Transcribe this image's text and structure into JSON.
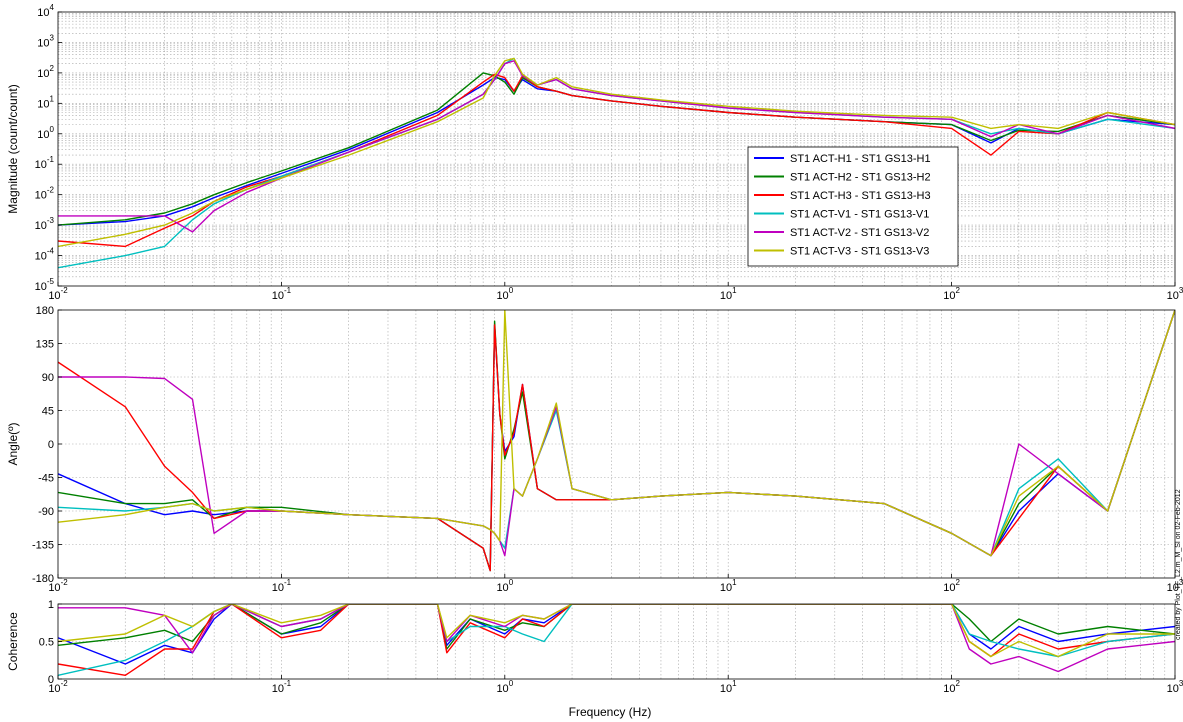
{
  "figure": {
    "credit": "created by Plot_TF_L2.m_M_SI on 02-Feb-2012",
    "xlabel": "Frequency (Hz)"
  },
  "chart_data": [
    {
      "type": "line",
      "xscale": "log",
      "yscale": "log",
      "xlim": [
        0.01,
        1000
      ],
      "ylim": [
        1e-05,
        10000
      ],
      "ylabel": "Magnitude (count/count)",
      "x_ticks": [
        0.01,
        0.1,
        1,
        10,
        100,
        1000
      ],
      "y_ticks": [
        1e-05,
        0.0001,
        0.001,
        0.01,
        0.1,
        1,
        10,
        100,
        1000,
        10000
      ],
      "grid": true,
      "legend_position": "right",
      "x": [
        0.01,
        0.02,
        0.03,
        0.04,
        0.05,
        0.07,
        0.1,
        0.2,
        0.5,
        0.8,
        0.9,
        1.0,
        1.1,
        1.2,
        1.4,
        1.7,
        2,
        3,
        5,
        10,
        20,
        50,
        100,
        150,
        200,
        300,
        500,
        1000
      ],
      "series": [
        {
          "name": "ST1 ACT-H1 - ST1 GS13-H1",
          "color": "#0000ff",
          "values": [
            0.001,
            0.0013,
            0.002,
            0.004,
            0.008,
            0.02,
            0.05,
            0.3,
            5,
            40,
            70,
            60,
            25,
            60,
            30,
            25,
            18,
            12,
            8,
            5,
            3.5,
            2.5,
            2,
            0.5,
            1.5,
            1,
            3,
            2
          ]
        },
        {
          "name": "ST1 ACT-H2 - ST1 GS13-H2",
          "color": "#008000",
          "values": [
            0.001,
            0.0015,
            0.0025,
            0.005,
            0.01,
            0.025,
            0.06,
            0.35,
            6,
            100,
            80,
            50,
            20,
            70,
            35,
            25,
            18,
            12,
            8,
            5,
            3.5,
            2.5,
            2,
            0.6,
            1.3,
            1.2,
            4,
            2
          ]
        },
        {
          "name": "ST1 ACT-H3 - ST1 GS13-H3",
          "color": "#ff0000",
          "values": [
            0.0003,
            0.0002,
            0.0008,
            0.002,
            0.006,
            0.018,
            0.04,
            0.25,
            4,
            50,
            90,
            70,
            25,
            80,
            35,
            25,
            18,
            12,
            8,
            5,
            3.5,
            2.5,
            1.5,
            0.2,
            1.2,
            1,
            5,
            2
          ]
        },
        {
          "name": "ST1 ACT-V1 - ST1 GS13-V1",
          "color": "#00bfbf",
          "values": [
            4e-05,
            0.0001,
            0.0002,
            0.0015,
            0.005,
            0.015,
            0.04,
            0.25,
            3,
            20,
            60,
            200,
            300,
            80,
            40,
            60,
            30,
            18,
            12,
            7,
            5,
            3.5,
            3,
            1,
            1.5,
            1,
            3,
            1.5
          ]
        },
        {
          "name": "ST1 ACT-V2 - ST1 GS13-V2",
          "color": "#bf00bf",
          "values": [
            0.002,
            0.002,
            0.002,
            0.0006,
            0.003,
            0.012,
            0.035,
            0.25,
            3,
            20,
            60,
            200,
            250,
            80,
            40,
            60,
            30,
            18,
            12,
            7,
            5,
            3.5,
            3,
            0.8,
            2,
            1,
            4,
            1.5
          ]
        },
        {
          "name": "ST1 ACT-V3 - ST1 GS13-V3",
          "color": "#bfbf00",
          "values": [
            0.0002,
            0.0005,
            0.001,
            0.0025,
            0.006,
            0.015,
            0.035,
            0.2,
            2.5,
            15,
            80,
            250,
            300,
            90,
            40,
            70,
            35,
            20,
            13,
            8,
            5.5,
            4,
            3.5,
            1.5,
            2,
            1.5,
            5,
            2
          ]
        }
      ]
    },
    {
      "type": "line",
      "xscale": "log",
      "xlim": [
        0.01,
        1000
      ],
      "ylim": [
        -180,
        180
      ],
      "ylabel": "Angle(º)",
      "x_ticks": [
        0.01,
        0.1,
        1,
        10,
        100,
        1000
      ],
      "y_ticks": [
        -180,
        -135,
        -90,
        -45,
        0,
        45,
        90,
        135,
        180
      ],
      "grid": true,
      "x": [
        0.01,
        0.02,
        0.03,
        0.04,
        0.05,
        0.07,
        0.1,
        0.2,
        0.5,
        0.8,
        0.86,
        0.9,
        0.95,
        1.0,
        1.1,
        1.2,
        1.4,
        1.7,
        2,
        3,
        5,
        10,
        20,
        50,
        100,
        150,
        200,
        300,
        500,
        1000
      ],
      "series": [
        {
          "name": "ST1 ACT-H1 - ST1 GS13-H1",
          "color": "#0000ff",
          "values": [
            -40,
            -80,
            -95,
            -90,
            -95,
            -90,
            -90,
            -95,
            -100,
            -140,
            -170,
            160,
            40,
            -10,
            10,
            80,
            -60,
            -75,
            -75,
            -75,
            -70,
            -65,
            -70,
            -80,
            -120,
            -150,
            -90,
            -40,
            -90,
            180
          ]
        },
        {
          "name": "ST1 ACT-H2 - ST1 GS13-H2",
          "color": "#008000",
          "values": [
            -65,
            -80,
            -80,
            -75,
            -100,
            -85,
            -85,
            -95,
            -100,
            -140,
            -170,
            165,
            40,
            -20,
            20,
            70,
            -60,
            -75,
            -75,
            -75,
            -70,
            -65,
            -70,
            -80,
            -120,
            -150,
            -80,
            -30,
            -90,
            180
          ]
        },
        {
          "name": "ST1 ACT-H3 - ST1 GS13-H3",
          "color": "#ff0000",
          "values": [
            110,
            50,
            -30,
            -65,
            -100,
            -90,
            -90,
            -95,
            -100,
            -140,
            -170,
            160,
            40,
            -15,
            15,
            80,
            -60,
            -75,
            -75,
            -75,
            -70,
            -65,
            -70,
            -80,
            -120,
            -150,
            -100,
            -30,
            -90,
            180
          ]
        },
        {
          "name": "ST1 ACT-V1 - ST1 GS13-V1",
          "color": "#00bfbf",
          "values": [
            -85,
            -90,
            -85,
            -80,
            -90,
            -85,
            -90,
            -95,
            -100,
            -110,
            -115,
            -120,
            -130,
            -140,
            -60,
            -70,
            -20,
            45,
            -60,
            -75,
            -70,
            -65,
            -70,
            -80,
            -120,
            -150,
            -60,
            -20,
            -90,
            180
          ]
        },
        {
          "name": "ST1 ACT-V2 - ST1 GS13-V2",
          "color": "#bf00bf",
          "values": [
            90,
            90,
            88,
            60,
            -120,
            -90,
            -90,
            -95,
            -100,
            -110,
            -115,
            -120,
            -130,
            -150,
            -60,
            -70,
            -20,
            50,
            -60,
            -75,
            -70,
            -65,
            -70,
            -80,
            -120,
            -150,
            0,
            -40,
            -90,
            180
          ]
        },
        {
          "name": "ST1 ACT-V3 - ST1 GS13-V3",
          "color": "#bfbf00",
          "values": [
            -105,
            -95,
            -85,
            -80,
            -90,
            -85,
            -90,
            -95,
            -100,
            -110,
            -115,
            -120,
            -130,
            180,
            -60,
            -70,
            -20,
            55,
            -60,
            -75,
            -70,
            -65,
            -70,
            -80,
            -120,
            -150,
            -70,
            -30,
            -90,
            180
          ]
        }
      ]
    },
    {
      "type": "line",
      "xscale": "log",
      "xlim": [
        0.01,
        1000
      ],
      "ylim": [
        0,
        1
      ],
      "ylabel": "Coherence",
      "xlabel": "Frequency (Hz)",
      "x_ticks": [
        0.01,
        0.1,
        1,
        10,
        100,
        1000
      ],
      "y_ticks": [
        0,
        0.5,
        1
      ],
      "grid": true,
      "x": [
        0.01,
        0.02,
        0.03,
        0.04,
        0.05,
        0.06,
        0.1,
        0.15,
        0.2,
        0.5,
        0.55,
        0.7,
        1.0,
        1.2,
        1.5,
        2,
        10,
        100,
        120,
        150,
        200,
        300,
        500,
        1000
      ],
      "series": [
        {
          "name": "ST1 ACT-H1 - ST1 GS13-H1",
          "color": "#0000ff",
          "values": [
            0.55,
            0.2,
            0.45,
            0.35,
            0.8,
            1,
            0.6,
            0.7,
            1,
            1,
            0.45,
            0.8,
            0.6,
            0.8,
            0.75,
            1,
            1,
            1,
            0.6,
            0.4,
            0.7,
            0.5,
            0.6,
            0.7
          ]
        },
        {
          "name": "ST1 ACT-H2 - ST1 GS13-H2",
          "color": "#008000",
          "values": [
            0.45,
            0.55,
            0.65,
            0.5,
            0.85,
            1,
            0.6,
            0.75,
            1,
            1,
            0.4,
            0.8,
            0.65,
            0.75,
            0.7,
            1,
            1,
            1,
            0.8,
            0.5,
            0.8,
            0.6,
            0.7,
            0.6
          ]
        },
        {
          "name": "ST1 ACT-H3 - ST1 GS13-H3",
          "color": "#ff0000",
          "values": [
            0.2,
            0.05,
            0.4,
            0.4,
            0.9,
            1,
            0.55,
            0.65,
            1,
            1,
            0.35,
            0.75,
            0.55,
            0.8,
            0.7,
            1,
            1,
            1,
            0.5,
            0.3,
            0.6,
            0.4,
            0.5,
            0.6
          ]
        },
        {
          "name": "ST1 ACT-V1 - ST1 GS13-V1",
          "color": "#00bfbf",
          "values": [
            0.05,
            0.25,
            0.5,
            0.7,
            0.9,
            1,
            0.7,
            0.8,
            1,
            1,
            0.5,
            0.7,
            0.7,
            0.6,
            0.5,
            1,
            1,
            1,
            0.6,
            0.5,
            0.4,
            0.3,
            0.5,
            0.6
          ]
        },
        {
          "name": "ST1 ACT-V2 - ST1 GS13-V2",
          "color": "#bf00bf",
          "values": [
            0.95,
            0.95,
            0.85,
            0.35,
            0.85,
            1,
            0.7,
            0.8,
            1,
            1,
            0.5,
            0.85,
            0.7,
            0.85,
            0.8,
            1,
            1,
            1,
            0.4,
            0.2,
            0.3,
            0.1,
            0.4,
            0.5
          ]
        },
        {
          "name": "ST1 ACT-V3 - ST1 GS13-V3",
          "color": "#bfbf00",
          "values": [
            0.5,
            0.6,
            0.85,
            0.7,
            0.9,
            1,
            0.75,
            0.85,
            1,
            1,
            0.55,
            0.85,
            0.75,
            0.85,
            0.8,
            1,
            1,
            1,
            0.5,
            0.3,
            0.5,
            0.3,
            0.6,
            0.6
          ]
        }
      ]
    }
  ]
}
